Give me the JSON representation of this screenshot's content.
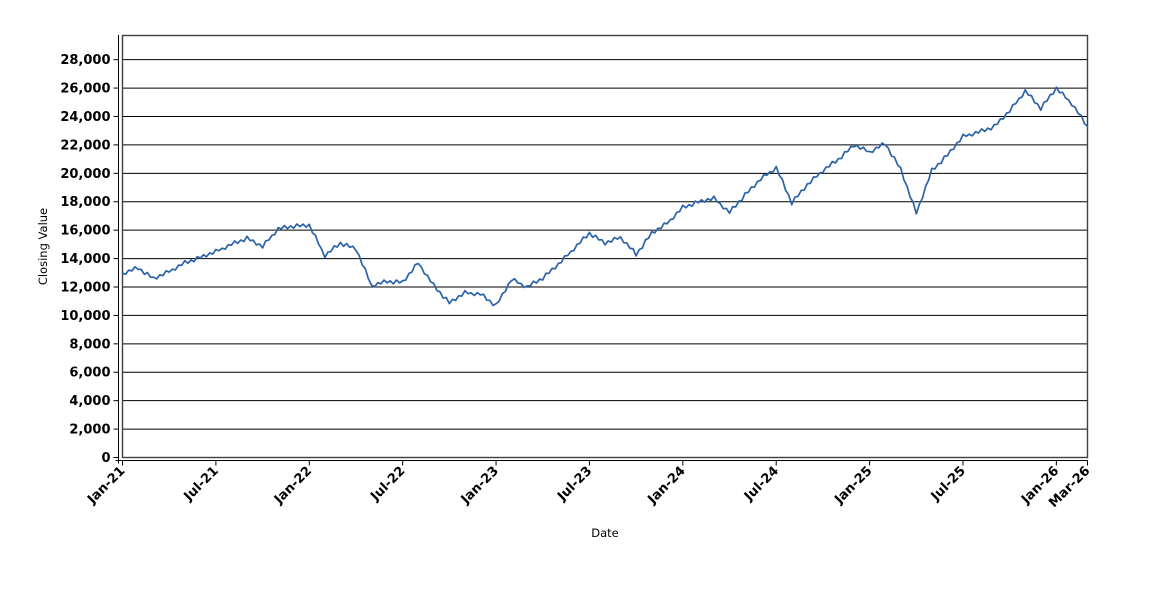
{
  "page": {
    "background_color": "#ffffff"
  },
  "chart_data": {
    "type": "line",
    "title": "",
    "xlabel": "Date",
    "ylabel": "Closing Value",
    "legend": "none",
    "grid": "horizontal-major-only",
    "plot_border_color": "#404040",
    "gridline_color": "#000000",
    "axis_line_color": "#000000",
    "xlim_months": [
      0,
      62
    ],
    "ylim": [
      0,
      29700
    ],
    "y_ticks": [
      0,
      2000,
      4000,
      6000,
      8000,
      10000,
      12000,
      14000,
      16000,
      18000,
      20000,
      22000,
      24000,
      26000,
      28000
    ],
    "y_tick_labels": [
      "0",
      "2,000",
      "4,000",
      "6,000",
      "8,000",
      "10,000",
      "12,000",
      "14,000",
      "16,000",
      "18,000",
      "20,000",
      "22,000",
      "24,000",
      "26,000",
      "28,000"
    ],
    "x_ticks": [
      {
        "label": "Jan-21",
        "month_index": 0
      },
      {
        "label": "Jul-21",
        "month_index": 6
      },
      {
        "label": "Jan-22",
        "month_index": 12
      },
      {
        "label": "Jul-22",
        "month_index": 18
      },
      {
        "label": "Jan-23",
        "month_index": 24
      },
      {
        "label": "Jul-23",
        "month_index": 30
      },
      {
        "label": "Jan-24",
        "month_index": 36
      },
      {
        "label": "Jul-24",
        "month_index": 42
      },
      {
        "label": "Jan-25",
        "month_index": 48
      },
      {
        "label": "Jul-25",
        "month_index": 54
      },
      {
        "label": "Jan-26",
        "month_index": 60
      },
      {
        "label": "Mar-26",
        "month_index": 62
      }
    ],
    "series": [
      {
        "name": "Closing Value",
        "color": "#2b62a8",
        "line_width": 1.7,
        "months": [
          "Jan-21",
          "Feb-21",
          "Mar-21",
          "Apr-21",
          "May-21",
          "Jun-21",
          "Jul-21",
          "Aug-21",
          "Sep-21",
          "Oct-21",
          "Nov-21",
          "Dec-21",
          "Jan-22",
          "Feb-22",
          "Mar-22",
          "Apr-22",
          "May-22",
          "Jun-22",
          "Jul-22",
          "Aug-22",
          "Sep-22",
          "Oct-22",
          "Nov-22",
          "Dec-22",
          "Jan-23",
          "Feb-23",
          "Mar-23",
          "Apr-23",
          "May-23",
          "Jun-23",
          "Jul-23",
          "Aug-23",
          "Sep-23",
          "Oct-23",
          "Nov-23",
          "Dec-23",
          "Jan-24",
          "Feb-24",
          "Mar-24",
          "Apr-24",
          "May-24",
          "Jun-24",
          "Jul-24",
          "Aug-24",
          "Sep-24",
          "Oct-24",
          "Nov-24",
          "Dec-24",
          "Jan-25",
          "Feb-25",
          "Mar-25",
          "Apr-25",
          "May-25",
          "Jun-25",
          "Jul-25",
          "Aug-25",
          "Sep-25",
          "Oct-25",
          "Nov-25",
          "Dec-25",
          "Jan-26",
          "Feb-26",
          "Mar-26"
        ],
        "monthly_values": [
          12950,
          13350,
          12600,
          13100,
          13700,
          14100,
          14500,
          15000,
          15450,
          14850,
          16100,
          16300,
          16350,
          14200,
          15100,
          14700,
          12100,
          12400,
          12350,
          13700,
          12100,
          10900,
          11600,
          11500,
          10700,
          12550,
          12000,
          12650,
          13600,
          14700,
          15800,
          15100,
          15500,
          14300,
          15800,
          16500,
          17600,
          18000,
          18250,
          17250,
          18500,
          19600,
          20400,
          17950,
          19200,
          20200,
          21000,
          22000,
          21500,
          22100,
          20300,
          17200,
          20200,
          21300,
          22600,
          22900,
          23300,
          24400,
          25800,
          24600,
          26000,
          24900,
          23300
        ],
        "points_per_month": 5,
        "noise_pattern": [
          30,
          -140,
          80,
          -60,
          150,
          -110,
          40,
          -160,
          120,
          -70,
          90,
          -130,
          60,
          -100,
          140,
          -50
        ]
      }
    ]
  }
}
